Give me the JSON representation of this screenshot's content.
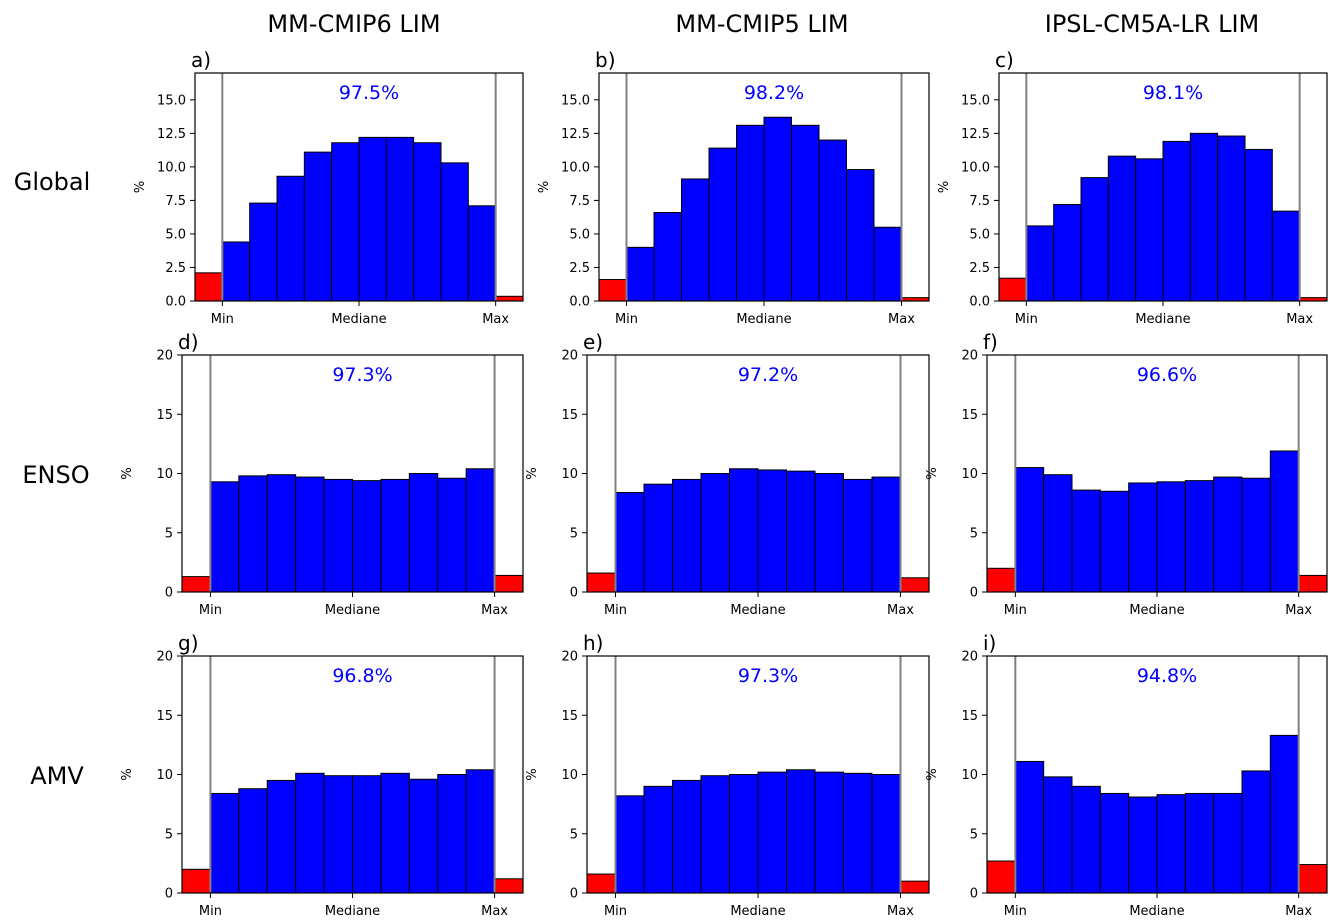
{
  "figure": {
    "column_titles": [
      "MM-CMIP6 LIM",
      "MM-CMIP5 LIM",
      "IPSL-CM5A-LR LIM"
    ],
    "row_labels": [
      "Global",
      "ENSO",
      "AMV"
    ],
    "colors": {
      "inside": "#0000ff",
      "outside": "#ff0000",
      "bounds_line": "#808080",
      "percent_text": "#0000ff"
    }
  },
  "chart_data": [
    {
      "panel": "a)",
      "type": "bar",
      "percent_label": "97.5%",
      "ylabel": "%",
      "ylim": [
        0,
        17
      ],
      "yticks": [
        "0.0",
        "2.5",
        "5.0",
        "7.5",
        "10.0",
        "12.5",
        "15.0"
      ],
      "xtick_labels": [
        "Min",
        "Mediane",
        "Max"
      ],
      "below_min": 2.1,
      "values": [
        4.4,
        7.3,
        9.3,
        11.1,
        11.8,
        12.2,
        12.2,
        11.8,
        10.3,
        7.1
      ],
      "above_max": 0.35
    },
    {
      "panel": "b)",
      "type": "bar",
      "percent_label": "98.2%",
      "ylabel": "%",
      "ylim": [
        0,
        17
      ],
      "yticks": [
        "0.0",
        "2.5",
        "5.0",
        "7.5",
        "10.0",
        "12.5",
        "15.0"
      ],
      "xtick_labels": [
        "Min",
        "Mediane",
        "Max"
      ],
      "below_min": 1.6,
      "values": [
        4.0,
        6.6,
        9.1,
        11.4,
        13.1,
        13.7,
        13.1,
        12.0,
        9.8,
        5.5
      ],
      "above_max": 0.25
    },
    {
      "panel": "c)",
      "type": "bar",
      "percent_label": "98.1%",
      "ylabel": "%",
      "ylim": [
        0,
        17
      ],
      "yticks": [
        "0.0",
        "2.5",
        "5.0",
        "7.5",
        "10.0",
        "12.5",
        "15.0"
      ],
      "xtick_labels": [
        "Min",
        "Mediane",
        "Max"
      ],
      "below_min": 1.7,
      "values": [
        5.6,
        7.2,
        9.2,
        10.8,
        10.6,
        11.9,
        12.5,
        12.3,
        11.3,
        6.7
      ],
      "above_max": 0.25
    },
    {
      "panel": "d)",
      "type": "bar",
      "percent_label": "97.3%",
      "ylabel": "%",
      "ylim": [
        0,
        20
      ],
      "yticks": [
        "0",
        "5",
        "10",
        "15",
        "20"
      ],
      "xtick_labels": [
        "Min",
        "Mediane",
        "Max"
      ],
      "below_min": 1.3,
      "values": [
        9.3,
        9.8,
        9.9,
        9.7,
        9.5,
        9.4,
        9.5,
        10.0,
        9.6,
        10.4
      ],
      "above_max": 1.4
    },
    {
      "panel": "e)",
      "type": "bar",
      "percent_label": "97.2%",
      "ylabel": "%",
      "ylim": [
        0,
        20
      ],
      "yticks": [
        "0",
        "5",
        "10",
        "15",
        "20"
      ],
      "xtick_labels": [
        "Min",
        "Mediane",
        "Max"
      ],
      "below_min": 1.6,
      "values": [
        8.4,
        9.1,
        9.5,
        10.0,
        10.4,
        10.3,
        10.2,
        10.0,
        9.5,
        9.7
      ],
      "above_max": 1.2
    },
    {
      "panel": "f)",
      "type": "bar",
      "percent_label": "96.6%",
      "ylabel": "%",
      "ylim": [
        0,
        20
      ],
      "yticks": [
        "0",
        "5",
        "10",
        "15",
        "20"
      ],
      "xtick_labels": [
        "Min",
        "Mediane",
        "Max"
      ],
      "below_min": 2.0,
      "values": [
        10.5,
        9.9,
        8.6,
        8.5,
        9.2,
        9.3,
        9.4,
        9.7,
        9.6,
        11.9
      ],
      "above_max": 1.4
    },
    {
      "panel": "g)",
      "type": "bar",
      "percent_label": "96.8%",
      "ylabel": "%",
      "ylim": [
        0,
        20
      ],
      "yticks": [
        "0",
        "5",
        "10",
        "15",
        "20"
      ],
      "xtick_labels": [
        "Min",
        "Mediane",
        "Max"
      ],
      "below_min": 2.0,
      "values": [
        8.4,
        8.8,
        9.5,
        10.1,
        9.9,
        9.9,
        10.1,
        9.6,
        10.0,
        10.4
      ],
      "above_max": 1.2
    },
    {
      "panel": "h)",
      "type": "bar",
      "percent_label": "97.3%",
      "ylabel": "%",
      "ylim": [
        0,
        20
      ],
      "yticks": [
        "0",
        "5",
        "10",
        "15",
        "20"
      ],
      "xtick_labels": [
        "Min",
        "Mediane",
        "Max"
      ],
      "below_min": 1.6,
      "values": [
        8.2,
        9.0,
        9.5,
        9.9,
        10.0,
        10.2,
        10.4,
        10.2,
        10.1,
        10.0
      ],
      "above_max": 1.0
    },
    {
      "panel": "i)",
      "type": "bar",
      "percent_label": "94.8%",
      "ylabel": "%",
      "ylim": [
        0,
        20
      ],
      "yticks": [
        "0",
        "5",
        "10",
        "15",
        "20"
      ],
      "xtick_labels": [
        "Min",
        "Mediane",
        "Max"
      ],
      "below_min": 2.7,
      "values": [
        11.1,
        9.8,
        9.0,
        8.4,
        8.1,
        8.3,
        8.4,
        8.4,
        10.3,
        13.3
      ],
      "above_max": 2.4
    }
  ]
}
